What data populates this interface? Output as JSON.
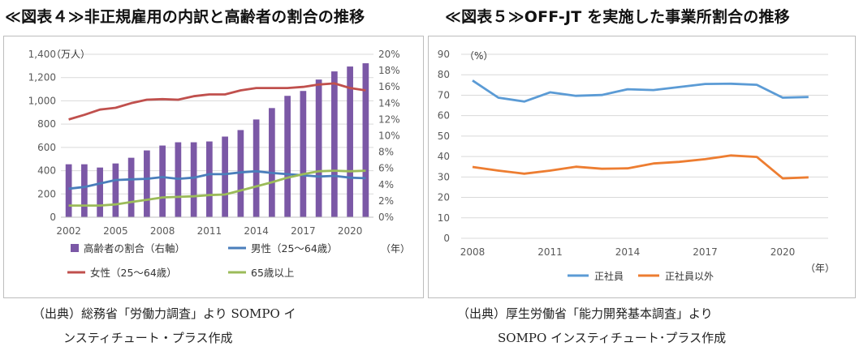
{
  "titles": {
    "left": "≪図表４≫非正規雇用の内訳と高齢者の割合の推移",
    "right": "≪図表５≫OFF-JT を実施した事業所割合の推移"
  },
  "sources": {
    "left_line1": "（出典）総務省「労働力調査」より SOMPO イ",
    "left_line2": "ンスティチュート・プラス作成",
    "right_line1": "（出典）厚生労働省「能力開発基本調査」より",
    "right_line2": "SOMPO インスティチュート･プラス作成"
  },
  "colors": {
    "bar": "#7b58a6",
    "male": "#4a7ebb",
    "female": "#c0504d",
    "over65": "#9bbb59",
    "regular": "#5b9bd5",
    "nonregular": "#ed7d31",
    "grid": "#d9d9d9",
    "axis_text": "#595959"
  },
  "chart_data": [
    {
      "type": "bar",
      "x": [
        2002,
        2003,
        2004,
        2005,
        2006,
        2007,
        2008,
        2009,
        2010,
        2011,
        2012,
        2013,
        2014,
        2015,
        2016,
        2017,
        2018,
        2019,
        2020,
        2021
      ],
      "x_tick_labels": [
        "2002",
        "2005",
        "2008",
        "2011",
        "2014",
        "2017",
        "2020"
      ],
      "x_unit": "（年）",
      "y_unit": "（万人）",
      "ylim": [
        0,
        1400
      ],
      "y_ticks": [
        "0",
        "200",
        "400",
        "600",
        "800",
        "1,000",
        "1,200",
        "1,400"
      ],
      "y2lim": [
        0,
        20
      ],
      "y2_ticks": [
        "0%",
        "2%",
        "4%",
        "6%",
        "8%",
        "10%",
        "12%",
        "14%",
        "16%",
        "18%",
        "20%"
      ],
      "grid": true,
      "legend_position": "bottom",
      "series": [
        {
          "name": "高齢者の割合（右軸）",
          "type": "bar",
          "axis": "right",
          "values": [
            6.5,
            6.5,
            6.1,
            6.6,
            7.3,
            8.2,
            8.8,
            9.2,
            9.2,
            9.3,
            9.9,
            10.7,
            12.0,
            13.4,
            14.9,
            15.5,
            16.9,
            17.9,
            18.5,
            18.9
          ]
        },
        {
          "name": "男性（25～64歳）",
          "type": "line",
          "axis": "left",
          "values": [
            245,
            260,
            290,
            320,
            325,
            330,
            345,
            330,
            340,
            370,
            370,
            385,
            395,
            380,
            370,
            360,
            350,
            355,
            340,
            335
          ]
        },
        {
          "name": "女性（25～64歳）",
          "type": "line",
          "axis": "left",
          "values": [
            840,
            880,
            925,
            940,
            980,
            1010,
            1015,
            1010,
            1040,
            1055,
            1055,
            1090,
            1110,
            1110,
            1110,
            1120,
            1140,
            1150,
            1110,
            1090
          ]
        },
        {
          "name": "65歳以上",
          "type": "line",
          "axis": "left",
          "values": [
            100,
            100,
            100,
            110,
            130,
            150,
            170,
            175,
            180,
            190,
            195,
            230,
            265,
            300,
            340,
            370,
            395,
            400,
            395,
            400
          ]
        }
      ]
    },
    {
      "type": "line",
      "x": [
        2008,
        2009,
        2010,
        2011,
        2012,
        2013,
        2014,
        2015,
        2016,
        2017,
        2018,
        2019,
        2020,
        2021
      ],
      "x_tick_labels": [
        "2008",
        "2011",
        "2014",
        "2017",
        "2020"
      ],
      "x_unit": "（年）",
      "y_unit": "（%）",
      "ylim": [
        0,
        90
      ],
      "y_ticks": [
        "0",
        "10",
        "20",
        "30",
        "40",
        "50",
        "60",
        "70",
        "80",
        "90"
      ],
      "grid": true,
      "legend_position": "bottom",
      "series": [
        {
          "name": "正社員",
          "values": [
            77.2,
            68.8,
            66.9,
            71.4,
            69.7,
            70.1,
            72.9,
            72.5,
            74.0,
            75.5,
            75.6,
            75.1,
            68.8,
            69.1
          ]
        },
        {
          "name": "正社員以外",
          "values": [
            34.9,
            33.1,
            31.6,
            33.1,
            35.0,
            34.0,
            34.2,
            36.6,
            37.4,
            38.7,
            40.5,
            39.8,
            29.3,
            29.8
          ]
        }
      ]
    }
  ]
}
